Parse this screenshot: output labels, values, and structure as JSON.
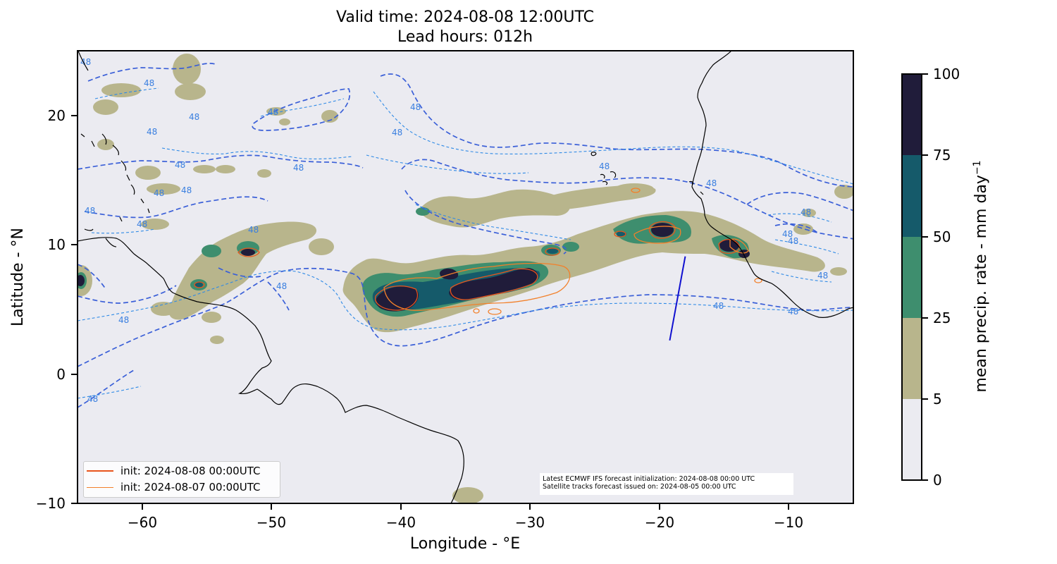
{
  "title": {
    "line1": "Valid time: 2024-08-08 12:00UTC",
    "line2": "Lead hours: 012h"
  },
  "axes": {
    "xlabel": "Longitude - °E",
    "ylabel": "Latitude - °N",
    "xlim": [
      -65,
      -5
    ],
    "ylim": [
      -10,
      25
    ],
    "xticks": [
      -60,
      -50,
      -40,
      -30,
      -20,
      -10
    ],
    "xtick_labels": [
      "−60",
      "−50",
      "−40",
      "−30",
      "−20",
      "−10"
    ],
    "yticks": [
      20,
      10,
      0,
      -10
    ],
    "ytick_labels": [
      "20",
      "10",
      "0",
      "−10"
    ]
  },
  "colorbar": {
    "label": "mean precip. rate - mm day",
    "label_superscript": "−1",
    "levels": [
      0,
      5,
      25,
      50,
      75,
      100
    ],
    "level_labels": [
      "0",
      "5",
      "25",
      "50",
      "75",
      "100"
    ],
    "colors": [
      "#ebebf1",
      "#b8b58c",
      "#3e8e6e",
      "#155a6a",
      "#201c3a"
    ]
  },
  "legend": {
    "entries": [
      {
        "label": "init: 2024-08-08 00:00UTC",
        "color": "#e8541c"
      },
      {
        "label": "init: 2024-08-07 00:00UTC",
        "color": "#f2802a"
      }
    ]
  },
  "contour_label": "48",
  "annotation": {
    "line1": "Latest ECMWF IFS forecast initialization: 2024-08-08 00:00 UTC",
    "line2": "Satellite tracks forecast issued on: 2024-08-05 00:00 UTC"
  },
  "colors": {
    "map_background": "#ebebf1",
    "contour_dashed": "#3a5fd8",
    "contour_thin_dashed": "#2f8ae6",
    "satellite_track": "#1010d0",
    "coastline": "#000000"
  },
  "chart_data": {
    "type": "map",
    "precip_blobs": [
      {
        "lon": -38,
        "lat": 6.2,
        "value": 80
      },
      {
        "lon": -33,
        "lat": 7.0,
        "value": 80
      },
      {
        "lon": -36,
        "lat": 6.0,
        "value": 60
      },
      {
        "lon": -31,
        "lat": 7.4,
        "value": 60
      },
      {
        "lon": -16,
        "lat": 11.0,
        "value": 80
      },
      {
        "lon": -14,
        "lat": 9.8,
        "value": 80
      },
      {
        "lon": -52,
        "lat": 9.4,
        "value": 80
      },
      {
        "lon": -55,
        "lat": 9.6,
        "value": 60
      },
      {
        "lon": -55,
        "lat": 7.0,
        "value": 60
      }
    ],
    "satellite_track": [
      {
        "lon": -19.2,
        "lat": 2.6
      },
      {
        "lon": -18.0,
        "lat": 9.1
      }
    ]
  }
}
